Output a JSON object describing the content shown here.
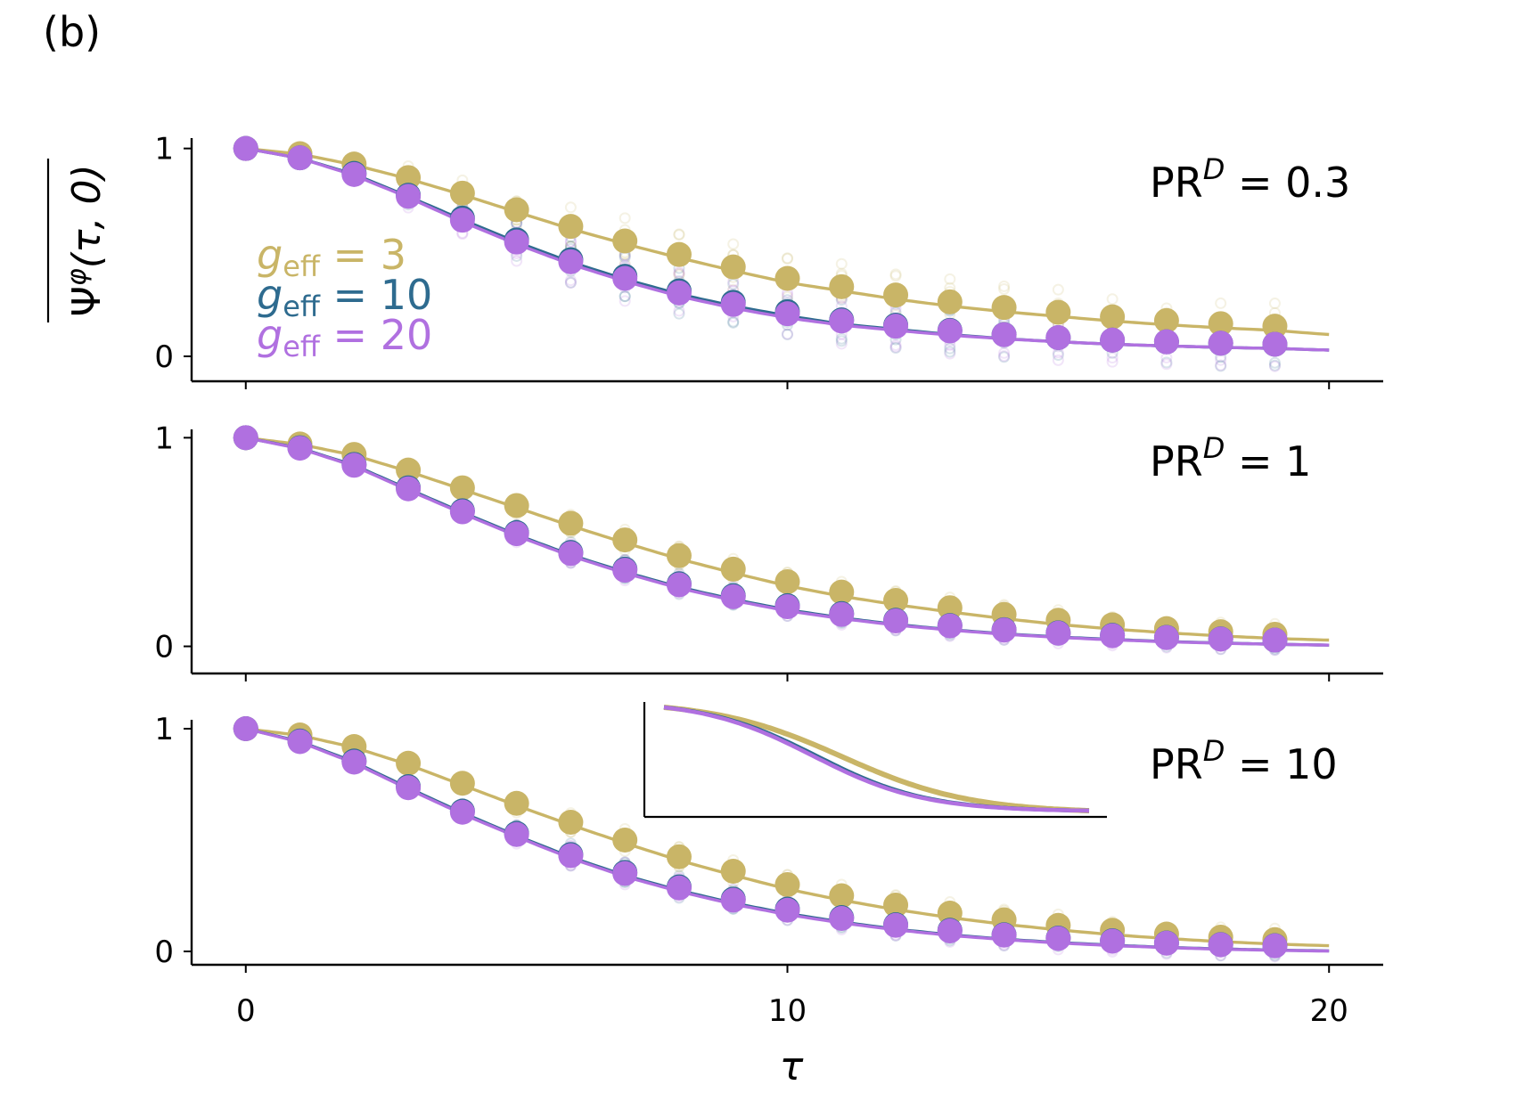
{
  "panel_label": "(b)",
  "chart_data": {
    "type": "line",
    "title": "",
    "xlabel": "τ",
    "ylabel": "Ψ^φ(τ, 0)",
    "ylabel_parts": {
      "base": "Ψ",
      "sup": "φ",
      "args": "(τ, 0)"
    },
    "xlim": [
      -1,
      21
    ],
    "xticks": [
      "0",
      "10",
      "20"
    ],
    "xtick_values": [
      0,
      10,
      20
    ],
    "ytick_values": [
      0,
      1
    ],
    "yticks": [
      "0",
      "1"
    ],
    "grid": false,
    "legend": {
      "placement": "upper-left (top panel)",
      "entries": [
        {
          "base": "g",
          "sub": "eff",
          "rest": " = 3",
          "color": "#c9b567"
        },
        {
          "base": "g",
          "sub": "eff",
          "rest": " = 10",
          "color": "#2e6b8f"
        },
        {
          "base": "g",
          "sub": "eff",
          "rest": " = 20",
          "color": "#b070e0"
        }
      ]
    },
    "series_colors": {
      "g3": "#c9b567",
      "g10": "#2e6b8f",
      "g20": "#b070e0"
    },
    "marker_tau": [
      0,
      1,
      2,
      3,
      4,
      5,
      6,
      7,
      8,
      9,
      10,
      11,
      12,
      13,
      14,
      15,
      16,
      17,
      18,
      19
    ],
    "curve_tau_range": [
      0,
      20
    ],
    "panels": [
      {
        "label": {
          "base": "PR",
          "sup": "D",
          "rest": " = 0.3"
        },
        "ylim": [
          -0.12,
          1.05
        ],
        "series": [
          {
            "name": "g_eff = 3",
            "color": "#c9b567",
            "tau0": 7.9,
            "width": 7.0,
            "values": [
              1.0,
              0.975,
              0.925,
              0.86,
              0.785,
              0.705,
              0.625,
              0.555,
              0.49,
              0.43,
              0.375,
              0.335,
              0.295,
              0.262,
              0.235,
              0.212,
              0.19,
              0.172,
              0.157,
              0.145
            ]
          },
          {
            "name": "g_eff = 10",
            "color": "#2e6b8f",
            "tau0": 6.1,
            "width": 5.4,
            "values": [
              1.0,
              0.955,
              0.88,
              0.775,
              0.665,
              0.56,
              0.465,
              0.385,
              0.315,
              0.26,
              0.215,
              0.175,
              0.15,
              0.125,
              0.105,
              0.09,
              0.078,
              0.07,
              0.063,
              0.058
            ]
          },
          {
            "name": "g_eff = 20",
            "color": "#b070e0",
            "tau0": 6.0,
            "width": 5.3,
            "values": [
              1.0,
              0.955,
              0.875,
              0.77,
              0.655,
              0.55,
              0.455,
              0.375,
              0.305,
              0.25,
              0.205,
              0.17,
              0.145,
              0.122,
              0.104,
              0.09,
              0.078,
              0.07,
              0.063,
              0.058
            ]
          }
        ]
      },
      {
        "label": {
          "base": "PR",
          "sup": "D",
          "rest": " = 1"
        },
        "ylim": [
          -0.13,
          1.04
        ],
        "series": [
          {
            "name": "g_eff = 3",
            "color": "#c9b567",
            "tau0": 7.4,
            "width": 6.0,
            "values": [
              1.0,
              0.97,
              0.92,
              0.845,
              0.76,
              0.675,
              0.59,
              0.51,
              0.435,
              0.37,
              0.31,
              0.26,
              0.22,
              0.185,
              0.153,
              0.125,
              0.103,
              0.085,
              0.07,
              0.058
            ]
          },
          {
            "name": "g_eff = 10",
            "color": "#2e6b8f",
            "tau0": 6.2,
            "width": 5.4,
            "values": [
              1.0,
              0.952,
              0.872,
              0.76,
              0.65,
              0.545,
              0.45,
              0.37,
              0.3,
              0.243,
              0.195,
              0.157,
              0.125,
              0.1,
              0.08,
              0.065,
              0.053,
              0.043,
              0.036,
              0.03
            ]
          },
          {
            "name": "g_eff = 20",
            "color": "#b070e0",
            "tau0": 6.1,
            "width": 5.3,
            "values": [
              1.0,
              0.95,
              0.868,
              0.755,
              0.645,
              0.54,
              0.445,
              0.365,
              0.295,
              0.238,
              0.19,
              0.153,
              0.122,
              0.098,
              0.078,
              0.063,
              0.051,
              0.042,
              0.035,
              0.03
            ]
          }
        ]
      },
      {
        "label": {
          "base": "PR",
          "sup": "D",
          "rest": " = 10"
        },
        "ylim": [
          -0.06,
          1.04
        ],
        "series": [
          {
            "name": "g_eff = 3",
            "color": "#c9b567",
            "tau0": 7.2,
            "width": 5.8,
            "values": [
              1.0,
              0.972,
              0.92,
              0.845,
              0.755,
              0.665,
              0.58,
              0.5,
              0.425,
              0.36,
              0.3,
              0.25,
              0.208,
              0.172,
              0.142,
              0.117,
              0.095,
              0.078,
              0.064,
              0.053
            ]
          },
          {
            "name": "g_eff = 10",
            "color": "#2e6b8f",
            "tau0": 6.0,
            "width": 5.2,
            "values": [
              1.0,
              0.945,
              0.855,
              0.74,
              0.63,
              0.53,
              0.435,
              0.355,
              0.29,
              0.235,
              0.19,
              0.152,
              0.12,
              0.095,
              0.075,
              0.06,
              0.048,
              0.038,
              0.031,
              0.026
            ]
          },
          {
            "name": "g_eff = 20",
            "color": "#b070e0",
            "tau0": 5.9,
            "width": 5.1,
            "values": [
              1.0,
              0.942,
              0.85,
              0.735,
              0.625,
              0.525,
              0.43,
              0.35,
              0.285,
              0.23,
              0.185,
              0.148,
              0.117,
              0.092,
              0.073,
              0.058,
              0.046,
              0.037,
              0.03,
              0.025
            ]
          }
        ]
      }
    ],
    "inset": {
      "placement": "top-center of bottom panel",
      "series": [
        {
          "name": "g_eff = 3",
          "color": "#c9b567"
        },
        {
          "name": "g_eff = 10",
          "color": "#2e6b8f"
        },
        {
          "name": "g_eff = 20",
          "color": "#b070e0"
        }
      ]
    }
  }
}
